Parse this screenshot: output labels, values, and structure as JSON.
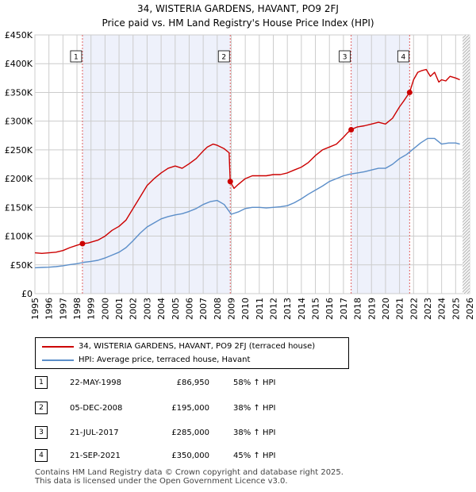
{
  "title": {
    "line1": "34, WISTERIA GARDENS, HAVANT, PO9 2FJ",
    "line2": "Price paid vs. HM Land Registry's House Price Index (HPI)"
  },
  "colors": {
    "property": "#cc0000",
    "hpi": "#5b8ec9",
    "shade": "#eef1fb",
    "grid": "#cccccc",
    "marker_line": "#e06060"
  },
  "legend": {
    "property_label": "34, WISTERIA GARDENS, HAVANT, PO9 2FJ (terraced house)",
    "hpi_label": "HPI: Average price, terraced house, Havant"
  },
  "transactions": [
    {
      "num": "1",
      "date": "22-MAY-1998",
      "price": "£86,950",
      "hpi_change": "58% ↑ HPI"
    },
    {
      "num": "2",
      "date": "05-DEC-2008",
      "price": "£195,000",
      "hpi_change": "38% ↑ HPI"
    },
    {
      "num": "3",
      "date": "21-JUL-2017",
      "price": "£285,000",
      "hpi_change": "38% ↑ HPI"
    },
    {
      "num": "4",
      "date": "21-SEP-2021",
      "price": "£350,000",
      "hpi_change": "45% ↑ HPI"
    }
  ],
  "footer": {
    "line1": "Contains HM Land Registry data © Crown copyright and database right 2025.",
    "line2": "This data is licensed under the Open Government Licence v3.0."
  },
  "chart_data": {
    "type": "line",
    "title": "34, WISTERIA GARDENS, HAVANT, PO9 2FJ",
    "xlim": [
      1995,
      2026
    ],
    "ylim": [
      0,
      450000
    ],
    "x_ticks": [
      1995,
      1996,
      1997,
      1998,
      1999,
      2000,
      2001,
      2002,
      2003,
      2004,
      2005,
      2006,
      2007,
      2008,
      2009,
      2010,
      2011,
      2012,
      2013,
      2014,
      2015,
      2016,
      2017,
      2018,
      2019,
      2020,
      2021,
      2022,
      2023,
      2024,
      2025,
      2026
    ],
    "y_ticks": [
      0,
      50000,
      100000,
      150000,
      200000,
      250000,
      300000,
      350000,
      400000,
      450000
    ],
    "y_tick_labels": [
      "£0",
      "£50K",
      "£100K",
      "£150K",
      "£200K",
      "£250K",
      "£300K",
      "£350K",
      "£400K",
      "£450K"
    ],
    "shaded_ranges": [
      [
        1998.39,
        2008.93
      ],
      [
        2017.55,
        2021.72
      ]
    ],
    "hatched_from": 2025.5,
    "markers": [
      {
        "label": "1",
        "x": 1998.39,
        "y": 86950
      },
      {
        "label": "2",
        "x": 2008.93,
        "y": 195000
      },
      {
        "label": "3",
        "x": 2017.55,
        "y": 285000
      },
      {
        "label": "4",
        "x": 2021.72,
        "y": 350000
      }
    ],
    "series": [
      {
        "name": "34, WISTERIA GARDENS, HAVANT, PO9 2FJ (terraced house)",
        "color": "#cc0000",
        "x": [
          1995,
          1995.5,
          1996,
          1996.5,
          1997,
          1997.5,
          1998,
          1998.39,
          1998.8,
          1999.5,
          2000,
          2000.5,
          2001,
          2001.5,
          2002,
          2002.5,
          2003,
          2003.5,
          2004,
          2004.5,
          2005,
          2005.5,
          2006,
          2006.5,
          2007,
          2007.3,
          2007.7,
          2008,
          2008.5,
          2008.85,
          2008.93,
          2009.2,
          2009.5,
          2010,
          2010.5,
          2011,
          2011.5,
          2012,
          2012.5,
          2013,
          2013.5,
          2014,
          2014.5,
          2015,
          2015.5,
          2016,
          2016.5,
          2017,
          2017.3,
          2017.55,
          2017.8,
          2018,
          2018.5,
          2019,
          2019.5,
          2020,
          2020.5,
          2021,
          2021.3,
          2021.72,
          2022,
          2022.3,
          2022.6,
          2022.9,
          2023.2,
          2023.5,
          2023.8,
          2024,
          2024.3,
          2024.6,
          2025,
          2025.3
        ],
        "values": [
          71000,
          70000,
          71000,
          72000,
          75000,
          80000,
          84000,
          86950,
          88000,
          93000,
          100000,
          110000,
          117000,
          128000,
          148000,
          168000,
          188000,
          200000,
          210000,
          218000,
          222000,
          218000,
          226000,
          235000,
          248000,
          255000,
          260000,
          258000,
          252000,
          245000,
          195000,
          183000,
          190000,
          200000,
          205000,
          205000,
          205000,
          207000,
          207000,
          210000,
          215000,
          220000,
          228000,
          240000,
          250000,
          255000,
          260000,
          272000,
          280000,
          285000,
          288000,
          290000,
          292000,
          295000,
          298000,
          295000,
          305000,
          325000,
          335000,
          350000,
          372000,
          385000,
          388000,
          390000,
          378000,
          385000,
          368000,
          372000,
          370000,
          378000,
          375000,
          372000
        ]
      },
      {
        "name": "HPI: Average price, terraced house, Havant",
        "color": "#5b8ec9",
        "x": [
          1995,
          1995.5,
          1996,
          1996.5,
          1997,
          1997.5,
          1998,
          1998.5,
          1999,
          1999.5,
          2000,
          2000.5,
          2001,
          2001.5,
          2002,
          2002.5,
          2003,
          2003.5,
          2004,
          2004.5,
          2005,
          2005.5,
          2006,
          2006.5,
          2007,
          2007.5,
          2008,
          2008.5,
          2009,
          2009.5,
          2010,
          2010.5,
          2011,
          2011.5,
          2012,
          2012.5,
          2013,
          2013.5,
          2014,
          2014.5,
          2015,
          2015.5,
          2016,
          2016.5,
          2017,
          2017.5,
          2018,
          2018.5,
          2019,
          2019.5,
          2020,
          2020.5,
          2021,
          2021.5,
          2022,
          2022.5,
          2023,
          2023.5,
          2024,
          2024.5,
          2025,
          2025.3
        ],
        "values": [
          45000,
          45500,
          46000,
          47000,
          48500,
          50500,
          52000,
          54500,
          56000,
          58000,
          62000,
          67000,
          72000,
          80000,
          92000,
          105000,
          116000,
          123000,
          130000,
          134000,
          137000,
          139000,
          143000,
          148000,
          155000,
          160000,
          162000,
          155000,
          138000,
          142000,
          148000,
          150000,
          150000,
          149000,
          150000,
          151000,
          153000,
          158000,
          165000,
          173000,
          180000,
          187000,
          195000,
          200000,
          205000,
          208000,
          210000,
          212000,
          215000,
          218000,
          218000,
          225000,
          235000,
          242000,
          252000,
          262000,
          270000,
          270000,
          260000,
          262000,
          262000,
          260000
        ]
      }
    ]
  }
}
